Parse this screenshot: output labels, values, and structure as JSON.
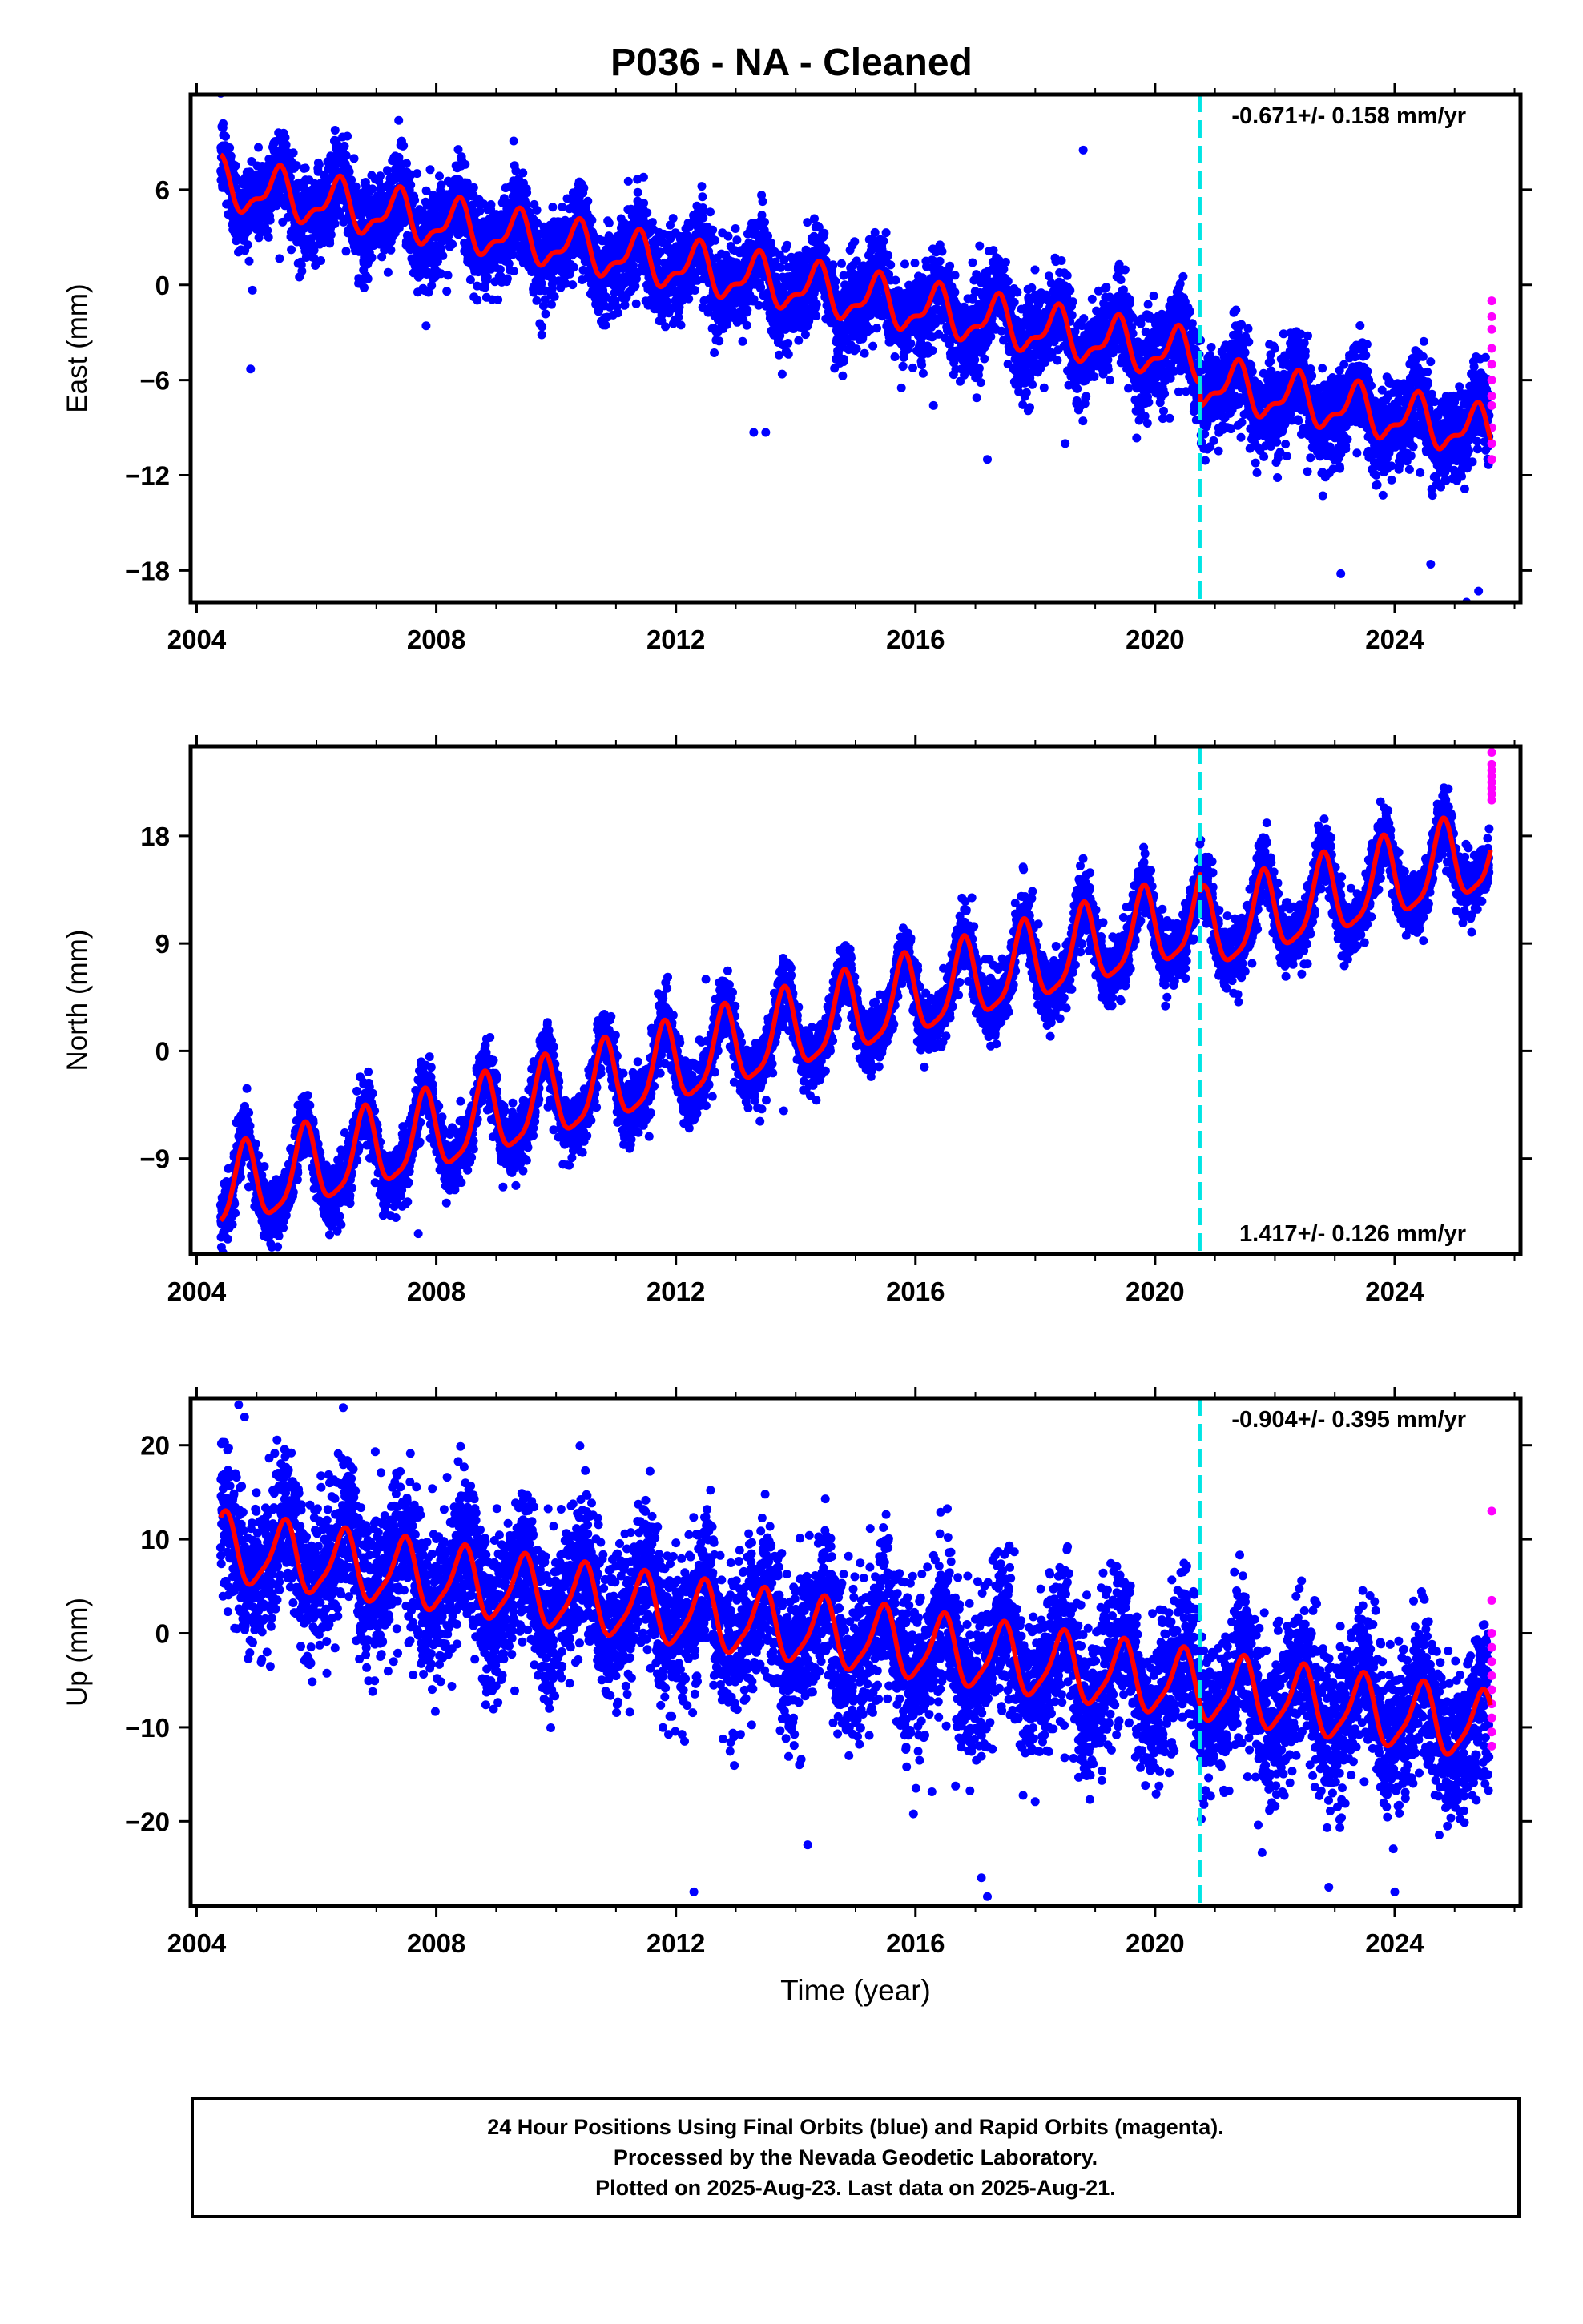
{
  "title": "P036  - NA - Cleaned",
  "colors": {
    "final_orbits": "#0000ff",
    "rapid_orbits": "#ff00ff",
    "model": "#ff0000",
    "event_line": "#00e5e5"
  },
  "chart_data": [
    {
      "type": "scatter",
      "ylabel": "East (mm)",
      "xlabel": "",
      "rate_label": "-0.671+/- 0.158 mm/yr",
      "rate_position": "top-right",
      "xlim": [
        2003.9,
        2026.1
      ],
      "ylim": [
        -20,
        12
      ],
      "xticks": [
        2004,
        2008,
        2012,
        2016,
        2020,
        2024
      ],
      "xtick_labels": [
        "2004",
        "2008",
        "2012",
        "2016",
        "2020",
        "2024"
      ],
      "yticks": [
        -18,
        -12,
        -6,
        0,
        6
      ],
      "ytick_labels": [
        "−18",
        "−12",
        "−6",
        "0",
        "6"
      ],
      "event_x": 2020.75,
      "model": {
        "start": 2004.4,
        "end": 2025.6,
        "offset_at_start": 6.3,
        "rate": -0.671,
        "annual_amplitude": 1.4,
        "annual_phase": 0.1,
        "semiannual_amplitude": 0.6,
        "semiannual_phase": 0.3,
        "step_at": 2020.75,
        "step": -1.5
      },
      "noise_sd": 1.4,
      "rapid_points": {
        "x": 2025.62,
        "y": [
          -1.0,
          -2.0,
          -2.8,
          -4.0,
          -5.0,
          -6.0,
          -7.0,
          -7.6,
          -9.0,
          -10.0,
          -11.0
        ]
      },
      "outliers": [
        [
          2004.9,
          -5.3
        ],
        [
          2013.3,
          -9.3
        ],
        [
          2013.5,
          -9.3
        ],
        [
          2016.3,
          -7.6
        ],
        [
          2017.2,
          -11.0
        ],
        [
          2018.5,
          -10.0
        ],
        [
          2018.8,
          8.5
        ],
        [
          2023.1,
          -18.2
        ],
        [
          2024.6,
          -17.6
        ],
        [
          2025.2,
          -20.0
        ],
        [
          2025.4,
          -19.3
        ]
      ]
    },
    {
      "type": "scatter",
      "ylabel": "North (mm)",
      "xlabel": "",
      "rate_label": "1.417+/- 0.126 mm/yr",
      "rate_position": "bottom-right",
      "xlim": [
        2003.9,
        2026.1
      ],
      "ylim": [
        -17,
        25.5
      ],
      "xticks": [
        2004,
        2008,
        2012,
        2016,
        2020,
        2024
      ],
      "xtick_labels": [
        "2004",
        "2008",
        "2012",
        "2016",
        "2020",
        "2024"
      ],
      "yticks": [
        -9,
        0,
        9,
        18
      ],
      "ytick_labels": [
        "−9",
        "0",
        "9",
        "18"
      ],
      "event_x": 2020.75,
      "model": {
        "start": 2004.4,
        "end": 2025.6,
        "offset_at_start": -12.0,
        "rate": 1.417,
        "annual_amplitude": 3.3,
        "annual_phase": 0.55,
        "semiannual_amplitude": 0.8,
        "semiannual_phase": 0.2,
        "step_at": 2020.75,
        "step": -1.5
      },
      "noise_sd": 1.3,
      "rapid_points": {
        "x": 2025.62,
        "y": [
          25.0,
          24.0,
          23.5,
          23.0,
          22.5,
          22.0,
          21.5,
          21.0
        ]
      },
      "outliers": [
        [
          2007.7,
          -15.3
        ],
        [
          2012.5,
          6.0
        ],
        [
          2013.8,
          -5.0
        ]
      ]
    },
    {
      "type": "scatter",
      "ylabel": "Up (mm)",
      "xlabel": "Time (year)",
      "rate_label": "-0.904+/- 0.395 mm/yr",
      "rate_position": "top-right",
      "xlim": [
        2003.9,
        2026.1
      ],
      "ylim": [
        -29,
        25
      ],
      "xticks": [
        2004,
        2008,
        2012,
        2016,
        2020,
        2024
      ],
      "xtick_labels": [
        "2004",
        "2008",
        "2012",
        "2016",
        "2020",
        "2024"
      ],
      "yticks": [
        -20,
        -10,
        0,
        10,
        20
      ],
      "ytick_labels": [
        "−20",
        "−10",
        "0",
        "10",
        "20"
      ],
      "event_x": 2020.75,
      "model": {
        "start": 2004.4,
        "end": 2025.6,
        "offset_at_start": 9.0,
        "rate": -0.904,
        "annual_amplitude": 3.5,
        "annual_phase": 0.2,
        "semiannual_amplitude": 0.8,
        "semiannual_phase": 0.4,
        "step_at": 2020.75,
        "step": 0
      },
      "noise_sd": 4.0,
      "rapid_points": {
        "x": 2025.62,
        "y": [
          13.0,
          3.5,
          0.0,
          -1.5,
          -3.0,
          -4.5,
          -6.0,
          -7.5,
          -9.0,
          -10.5,
          -12.0
        ]
      },
      "outliers": [
        [
          2004.7,
          24.3
        ],
        [
          2004.8,
          23.0
        ],
        [
          2012.3,
          -27.5
        ],
        [
          2014.2,
          -22.5
        ],
        [
          2017.1,
          -26.0
        ],
        [
          2017.2,
          -28.0
        ],
        [
          2022.9,
          -27.0
        ],
        [
          2024.0,
          -27.5
        ]
      ]
    }
  ],
  "caption": {
    "line1": "24 Hour Positions Using Final Orbits (blue) and Rapid Orbits (magenta).",
    "line2": "Processed by the Nevada Geodetic Laboratory.",
    "line3": "Plotted on 2025-Aug-23. Last data on 2025-Aug-21."
  }
}
